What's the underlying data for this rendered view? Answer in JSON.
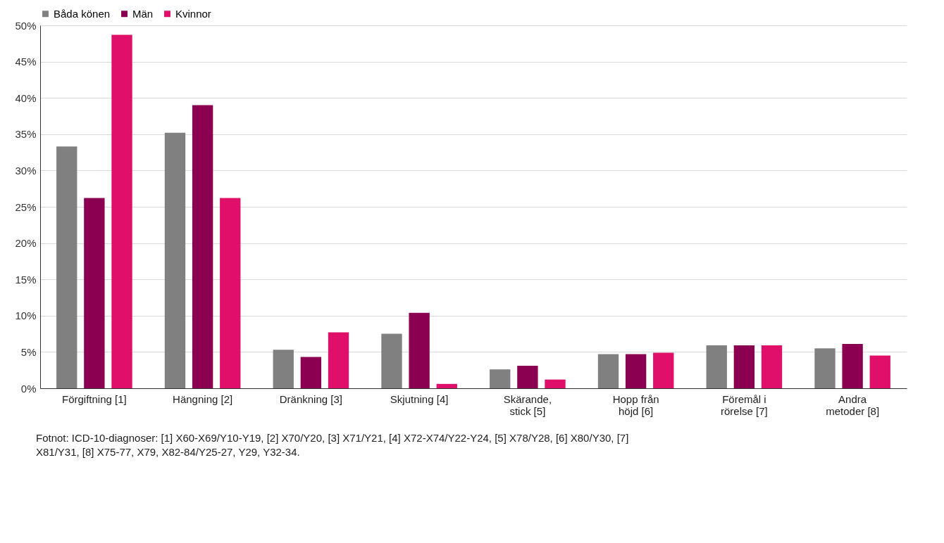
{
  "chart_data": {
    "type": "bar",
    "categories": [
      "Förgiftning [1]",
      "Hängning [2]",
      "Dränkning [3]",
      "Skjutning [4]",
      "Skärande, stick [5]",
      "Hopp från höjd [6]",
      "Föremål i rörelse [7]",
      "Andra metoder [8]"
    ],
    "series": [
      {
        "name": "Båda könen",
        "color": "#808080",
        "values": [
          33.3,
          35.2,
          5.3,
          7.5,
          2.6,
          4.7,
          5.9,
          5.5
        ]
      },
      {
        "name": "Män",
        "color": "#8b0050",
        "values": [
          26.2,
          39.0,
          4.3,
          10.4,
          3.1,
          4.7,
          5.9,
          6.1
        ]
      },
      {
        "name": "Kvinnor",
        "color": "#e0106a",
        "values": [
          48.7,
          26.2,
          7.7,
          0.6,
          1.2,
          4.9,
          5.9,
          4.5
        ]
      }
    ],
    "ylim": [
      0,
      50
    ],
    "yticks": [
      {
        "value": 0,
        "label": "0%"
      },
      {
        "value": 5,
        "label": "5%"
      },
      {
        "value": 10,
        "label": "10%"
      },
      {
        "value": 15,
        "label": "15%"
      },
      {
        "value": 20,
        "label": "20%"
      },
      {
        "value": 25,
        "label": "25%"
      },
      {
        "value": 30,
        "label": "30%"
      },
      {
        "value": 35,
        "label": "35%"
      },
      {
        "value": 40,
        "label": "40%"
      },
      {
        "value": 45,
        "label": "45%"
      },
      {
        "value": 50,
        "label": "50%"
      }
    ],
    "grid": "y",
    "legend": "top",
    "annotations": [
      "Fotnot: ICD-10-diagnoser: [1] X60-X69/Y10-Y19, [2] X70/Y20, [3] X71/Y21, [4] X72-X74/Y22-Y24, [5] X78/Y28, [6] X80/Y30, [7] X81/Y31, [8] X75-77, X79, X82-84/Y25-27, Y29, Y32-34."
    ]
  }
}
